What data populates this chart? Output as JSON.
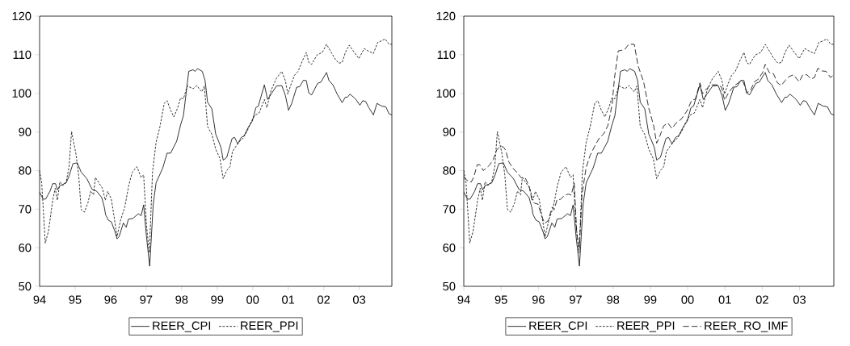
{
  "chart_data": [
    {
      "type": "line",
      "xlim": [
        1994,
        2003.92
      ],
      "ylim": [
        50,
        120
      ],
      "yticks": [
        50,
        60,
        70,
        80,
        90,
        100,
        110,
        120
      ],
      "xticks": [
        {
          "value": 1994,
          "label": "94"
        },
        {
          "value": 1995,
          "label": "95"
        },
        {
          "value": 1996,
          "label": "96"
        },
        {
          "value": 1997,
          "label": "97"
        },
        {
          "value": 1998,
          "label": "98"
        },
        {
          "value": 1999,
          "label": "99"
        },
        {
          "value": 2000,
          "label": "00"
        },
        {
          "value": 2001,
          "label": "01"
        },
        {
          "value": 2002,
          "label": "02"
        },
        {
          "value": 2003,
          "label": "03"
        }
      ],
      "legend": "bottom",
      "series": [
        {
          "name": "REER_CPI",
          "color": "#000000",
          "line_style": "solid",
          "x": [
            1994.0,
            1994.1,
            1994.17,
            1994.29,
            1994.37,
            1994.45,
            1994.5,
            1994.58,
            1994.75,
            1994.83,
            1994.94,
            1995.06,
            1995.17,
            1995.33,
            1995.48,
            1995.6,
            1995.75,
            1995.82,
            1995.86,
            1995.94,
            1996.02,
            1996.13,
            1996.18,
            1996.24,
            1996.36,
            1996.44,
            1996.5,
            1996.63,
            1996.78,
            1996.86,
            1996.93,
            1997.01,
            1997.1,
            1997.2,
            1997.28,
            1997.47,
            1997.59,
            1997.69,
            1997.86,
            1997.97,
            1998.05,
            1998.2,
            1998.32,
            1998.38,
            1998.45,
            1998.58,
            1998.66,
            1998.73,
            1998.85,
            1998.96,
            1999.04,
            1999.11,
            1999.17,
            1999.27,
            1999.42,
            1999.49,
            1999.58,
            1999.68,
            1999.76,
            1999.87,
            1999.99,
            2000.09,
            2000.16,
            2000.33,
            2000.42,
            2000.52,
            2000.67,
            2000.82,
            2000.92,
            2001.01,
            2001.1,
            2001.24,
            2001.32,
            2001.43,
            2001.51,
            2001.58,
            2001.66,
            2001.83,
            2001.92,
            2002.08,
            2002.15,
            2002.26,
            2002.38,
            2002.52,
            2002.61,
            2002.67,
            2002.74,
            2002.83,
            2002.91,
            2003.02,
            2003.1,
            2003.18,
            2003.27,
            2003.4,
            2003.5,
            2003.63,
            2003.75,
            2003.84,
            2003.92
          ],
          "values": [
            74.4,
            72.6,
            72.6,
            74.6,
            76.6,
            76.6,
            75.0,
            76.1,
            76.8,
            78.6,
            81.8,
            82.0,
            79.6,
            77.9,
            75.1,
            74.7,
            73.0,
            70.6,
            68.5,
            67.1,
            66.7,
            64.0,
            62.3,
            62.9,
            66.4,
            65.3,
            67.4,
            67.6,
            68.8,
            68.3,
            71.1,
            62.9,
            55.2,
            71.3,
            76.8,
            80.7,
            84.5,
            84.5,
            87.6,
            91.8,
            94.2,
            105.7,
            106.1,
            105.7,
            106.4,
            105.7,
            103.3,
            97.7,
            96.0,
            89.4,
            87.6,
            85.9,
            82.7,
            83.4,
            88.3,
            88.6,
            86.9,
            88.6,
            89.0,
            91.1,
            92.8,
            96.3,
            96.7,
            102.2,
            98.4,
            99.8,
            101.9,
            102.0,
            99.5,
            95.6,
            97.4,
            101.6,
            101.7,
            103.4,
            103.3,
            100.1,
            99.6,
            102.6,
            102.9,
            105.4,
            103.3,
            102.2,
            99.8,
            97.6,
            99.0,
            99.0,
            99.8,
            99.1,
            98.4,
            96.9,
            98.1,
            97.9,
            96.3,
            94.4,
            97.4,
            96.7,
            96.5,
            94.7,
            94.4
          ]
        },
        {
          "name": "REER_PPI",
          "color": "#000000",
          "line_style": "dotted",
          "x": [
            1994.0,
            1994.06,
            1994.16,
            1994.25,
            1994.37,
            1994.44,
            1994.5,
            1994.57,
            1994.65,
            1994.75,
            1994.83,
            1994.9,
            1995.02,
            1995.1,
            1995.17,
            1995.26,
            1995.36,
            1995.44,
            1995.52,
            1995.57,
            1995.67,
            1995.77,
            1995.85,
            1995.92,
            1996.02,
            1996.09,
            1996.18,
            1996.28,
            1996.4,
            1996.51,
            1996.61,
            1996.74,
            1996.86,
            1996.93,
            1997.01,
            1997.09,
            1997.18,
            1997.28,
            1997.39,
            1997.51,
            1997.59,
            1997.69,
            1997.78,
            1997.89,
            1997.97,
            1998.05,
            1998.16,
            1998.32,
            1998.43,
            1998.51,
            1998.57,
            1998.64,
            1998.73,
            1998.85,
            1998.96,
            1999.08,
            1999.17,
            1999.27,
            1999.36,
            1999.43,
            1999.53,
            1999.63,
            1999.72,
            1999.84,
            1999.95,
            2000.06,
            2000.18,
            2000.33,
            2000.4,
            2000.52,
            2000.67,
            2000.82,
            2000.92,
            2000.99,
            2001.09,
            2001.18,
            2001.28,
            2001.39,
            2001.51,
            2001.58,
            2001.66,
            2001.81,
            2001.96,
            2002.08,
            2002.19,
            2002.3,
            2002.42,
            2002.52,
            2002.61,
            2002.72,
            2002.83,
            2002.99,
            2003.14,
            2003.25,
            2003.4,
            2003.52,
            2003.63,
            2003.73,
            2003.84,
            2003.92
          ],
          "values": [
            80.0,
            76.8,
            61.2,
            64.3,
            72.3,
            75.4,
            72.3,
            77.1,
            76.1,
            77.1,
            81.0,
            90.1,
            84.5,
            78.9,
            69.9,
            69.2,
            71.6,
            74.7,
            73.7,
            78.2,
            76.8,
            75.4,
            72.3,
            74.6,
            72.6,
            68.5,
            62.9,
            67.1,
            70.6,
            76.1,
            79.6,
            81.0,
            78.2,
            78.9,
            65.7,
            58.7,
            79.6,
            87.3,
            91.4,
            97.4,
            98.1,
            95.6,
            93.9,
            96.3,
            98.8,
            98.6,
            101.9,
            101.2,
            102.0,
            101.0,
            100.4,
            101.9,
            91.4,
            89.4,
            85.5,
            83.1,
            77.9,
            80.0,
            81.0,
            84.9,
            86.3,
            87.5,
            88.3,
            90.1,
            92.5,
            94.3,
            94.9,
            98.4,
            96.3,
            100.8,
            103.9,
            105.7,
            103.3,
            99.8,
            102.6,
            104.7,
            105.7,
            108.2,
            110.6,
            108.0,
            107.5,
            109.9,
            110.6,
            112.7,
            111.0,
            109.2,
            107.8,
            108.0,
            110.6,
            112.5,
            111.0,
            109.0,
            111.6,
            111.0,
            110.3,
            113.2,
            113.6,
            114.1,
            112.7,
            112.7
          ]
        }
      ]
    },
    {
      "type": "line",
      "xlim": [
        1994,
        2003.92
      ],
      "ylim": [
        50,
        120
      ],
      "yticks": [
        50,
        60,
        70,
        80,
        90,
        100,
        110,
        120
      ],
      "xticks": [
        {
          "value": 1994,
          "label": "94"
        },
        {
          "value": 1995,
          "label": "95"
        },
        {
          "value": 1996,
          "label": "96"
        },
        {
          "value": 1997,
          "label": "97"
        },
        {
          "value": 1998,
          "label": "98"
        },
        {
          "value": 1999,
          "label": "99"
        },
        {
          "value": 2000,
          "label": "00"
        },
        {
          "value": 2001,
          "label": "01"
        },
        {
          "value": 2002,
          "label": "02"
        },
        {
          "value": 2003,
          "label": "03"
        }
      ],
      "legend": "bottom",
      "series": [
        {
          "name": "REER_CPI",
          "color": "#000000",
          "line_style": "solid",
          "x": [
            1994.0,
            1994.1,
            1994.17,
            1994.29,
            1994.37,
            1994.45,
            1994.5,
            1994.58,
            1994.75,
            1994.83,
            1994.94,
            1995.06,
            1995.17,
            1995.33,
            1995.48,
            1995.6,
            1995.75,
            1995.82,
            1995.86,
            1995.94,
            1996.02,
            1996.13,
            1996.18,
            1996.24,
            1996.36,
            1996.44,
            1996.5,
            1996.63,
            1996.78,
            1996.86,
            1996.93,
            1997.01,
            1997.1,
            1997.2,
            1997.28,
            1997.47,
            1997.59,
            1997.69,
            1997.86,
            1997.97,
            1998.05,
            1998.2,
            1998.32,
            1998.38,
            1998.45,
            1998.58,
            1998.66,
            1998.73,
            1998.85,
            1998.96,
            1999.04,
            1999.11,
            1999.17,
            1999.27,
            1999.42,
            1999.49,
            1999.58,
            1999.68,
            1999.76,
            1999.87,
            1999.99,
            2000.09,
            2000.16,
            2000.33,
            2000.42,
            2000.52,
            2000.67,
            2000.82,
            2000.92,
            2001.01,
            2001.1,
            2001.24,
            2001.32,
            2001.43,
            2001.51,
            2001.58,
            2001.66,
            2001.83,
            2001.92,
            2002.08,
            2002.15,
            2002.26,
            2002.38,
            2002.52,
            2002.61,
            2002.67,
            2002.74,
            2002.83,
            2002.91,
            2003.02,
            2003.1,
            2003.18,
            2003.27,
            2003.4,
            2003.5,
            2003.63,
            2003.75,
            2003.84,
            2003.92
          ],
          "values": [
            74.4,
            72.6,
            72.6,
            74.6,
            76.6,
            76.6,
            75.0,
            76.1,
            76.8,
            78.6,
            81.8,
            82.0,
            79.6,
            77.9,
            75.1,
            74.7,
            73.0,
            70.6,
            68.5,
            67.1,
            66.7,
            64.0,
            62.3,
            62.9,
            66.4,
            65.3,
            67.4,
            67.6,
            68.8,
            68.3,
            71.1,
            62.9,
            55.2,
            71.3,
            76.8,
            80.7,
            84.5,
            84.5,
            87.6,
            91.8,
            94.2,
            105.7,
            106.1,
            105.7,
            106.4,
            105.7,
            103.3,
            97.7,
            96.0,
            89.4,
            87.6,
            85.9,
            82.7,
            83.4,
            88.3,
            88.6,
            86.9,
            88.6,
            89.0,
            91.1,
            92.8,
            96.3,
            96.7,
            102.2,
            98.4,
            99.8,
            101.9,
            102.0,
            99.5,
            95.6,
            97.4,
            101.6,
            101.7,
            103.4,
            103.3,
            100.1,
            99.6,
            102.6,
            102.9,
            105.4,
            103.3,
            102.2,
            99.8,
            97.6,
            99.0,
            99.0,
            99.8,
            99.1,
            98.4,
            96.9,
            98.1,
            97.9,
            96.3,
            94.4,
            97.4,
            96.7,
            96.5,
            94.7,
            94.4
          ]
        },
        {
          "name": "REER_PPI",
          "color": "#000000",
          "line_style": "dotted",
          "x": [
            1994.0,
            1994.06,
            1994.16,
            1994.25,
            1994.37,
            1994.44,
            1994.5,
            1994.57,
            1994.65,
            1994.75,
            1994.83,
            1994.9,
            1995.02,
            1995.1,
            1995.17,
            1995.26,
            1995.36,
            1995.44,
            1995.52,
            1995.57,
            1995.67,
            1995.77,
            1995.85,
            1995.92,
            1996.02,
            1996.09,
            1996.18,
            1996.28,
            1996.4,
            1996.51,
            1996.61,
            1996.74,
            1996.86,
            1996.93,
            1997.01,
            1997.09,
            1997.18,
            1997.28,
            1997.39,
            1997.51,
            1997.59,
            1997.69,
            1997.78,
            1997.89,
            1997.97,
            1998.05,
            1998.16,
            1998.32,
            1998.43,
            1998.51,
            1998.57,
            1998.64,
            1998.73,
            1998.85,
            1998.96,
            1999.08,
            1999.17,
            1999.27,
            1999.36,
            1999.43,
            1999.53,
            1999.63,
            1999.72,
            1999.84,
            1999.95,
            2000.06,
            2000.18,
            2000.33,
            2000.4,
            2000.52,
            2000.67,
            2000.82,
            2000.92,
            2000.99,
            2001.09,
            2001.18,
            2001.28,
            2001.39,
            2001.51,
            2001.58,
            2001.66,
            2001.81,
            2001.96,
            2002.08,
            2002.19,
            2002.3,
            2002.42,
            2002.52,
            2002.61,
            2002.72,
            2002.83,
            2002.99,
            2003.14,
            2003.25,
            2003.4,
            2003.52,
            2003.63,
            2003.73,
            2003.84,
            2003.92
          ],
          "values": [
            80.0,
            76.8,
            61.2,
            64.3,
            72.3,
            75.4,
            72.3,
            77.1,
            76.1,
            77.1,
            81.0,
            90.1,
            84.5,
            78.9,
            69.9,
            69.2,
            71.6,
            74.7,
            73.7,
            78.2,
            76.8,
            75.4,
            72.3,
            74.6,
            72.6,
            68.5,
            62.9,
            67.1,
            70.6,
            76.1,
            79.6,
            81.0,
            78.2,
            78.9,
            65.7,
            58.7,
            79.6,
            87.3,
            91.4,
            97.4,
            98.1,
            95.6,
            93.9,
            96.3,
            98.8,
            98.6,
            101.9,
            101.2,
            102.0,
            101.0,
            100.4,
            101.9,
            91.4,
            89.4,
            85.5,
            83.1,
            77.9,
            80.0,
            81.0,
            84.9,
            86.3,
            87.5,
            88.3,
            90.1,
            92.5,
            94.3,
            94.9,
            98.4,
            96.3,
            100.8,
            103.9,
            105.7,
            103.3,
            99.8,
            102.6,
            104.7,
            105.7,
            108.2,
            110.6,
            108.0,
            107.5,
            109.9,
            110.6,
            112.7,
            111.0,
            109.2,
            107.8,
            108.0,
            110.6,
            112.5,
            111.0,
            109.0,
            111.6,
            111.0,
            110.3,
            113.2,
            113.6,
            114.1,
            112.7,
            112.7
          ]
        },
        {
          "name": "REER_RO_IMF",
          "color": "#000000",
          "line_style": "dashed",
          "x": [
            1994.0,
            1994.09,
            1994.2,
            1994.27,
            1994.36,
            1994.43,
            1994.52,
            1994.59,
            1994.7,
            1994.79,
            1994.88,
            1994.99,
            1995.07,
            1995.12,
            1995.21,
            1995.32,
            1995.43,
            1995.54,
            1995.64,
            1995.75,
            1995.83,
            1995.9,
            1995.99,
            1996.08,
            1996.17,
            1996.26,
            1996.37,
            1996.42,
            1996.5,
            1996.59,
            1996.7,
            1996.81,
            1996.88,
            1996.96,
            1997.03,
            1997.1,
            1997.17,
            1997.28,
            1997.39,
            1997.53,
            1997.64,
            1997.75,
            1997.86,
            1997.93,
            1997.98,
            1998.04,
            1998.14,
            1998.31,
            1998.42,
            1998.57,
            1998.67,
            1998.82,
            1998.96,
            1999.09,
            1999.17,
            1999.25,
            1999.36,
            1999.47,
            1999.58,
            1999.69,
            1999.83,
            1999.98,
            2000.11,
            2000.21,
            2000.33,
            2000.4,
            2000.52,
            2000.63,
            2000.81,
            2000.91,
            2000.99,
            2001.1,
            2001.25,
            2001.36,
            2001.43,
            2001.5,
            2001.59,
            2001.68,
            2001.79,
            2001.9,
            2002.01,
            2002.08,
            2002.19,
            2002.3,
            2002.41,
            2002.51,
            2002.62,
            2002.73,
            2002.84,
            2002.99,
            2003.09,
            2003.2,
            2003.31,
            2003.4,
            2003.49,
            2003.6,
            2003.71,
            2003.83,
            2003.92
          ],
          "values": [
            78.4,
            77.4,
            77.0,
            78.4,
            81.5,
            81.5,
            80.0,
            80.5,
            81.5,
            82.9,
            85.3,
            86.4,
            86.0,
            85.3,
            82.2,
            80.5,
            79.5,
            78.1,
            78.2,
            76.0,
            72.2,
            71.5,
            71.3,
            68.4,
            66.3,
            67.0,
            70.5,
            69.8,
            72.5,
            72.5,
            73.6,
            73.9,
            73.6,
            76.7,
            63.5,
            60.1,
            73.9,
            80.8,
            84.0,
            86.7,
            88.5,
            89.5,
            91.6,
            94.7,
            97.5,
            104.0,
            111.0,
            111.3,
            112.7,
            112.7,
            107.2,
            103.0,
            96.1,
            91.6,
            87.1,
            88.8,
            91.6,
            92.3,
            90.9,
            92.3,
            93.3,
            95.4,
            98.2,
            98.5,
            102.7,
            99.9,
            101.3,
            102.2,
            102.2,
            101.6,
            98.2,
            100.2,
            102.0,
            102.7,
            103.4,
            102.7,
            100.2,
            100.6,
            103.0,
            103.7,
            105.4,
            107.5,
            105.4,
            105.1,
            102.7,
            102.0,
            103.4,
            104.4,
            104.8,
            103.0,
            104.8,
            104.8,
            103.7,
            104.1,
            106.5,
            105.8,
            105.7,
            104.1,
            104.8
          ]
        }
      ]
    }
  ]
}
